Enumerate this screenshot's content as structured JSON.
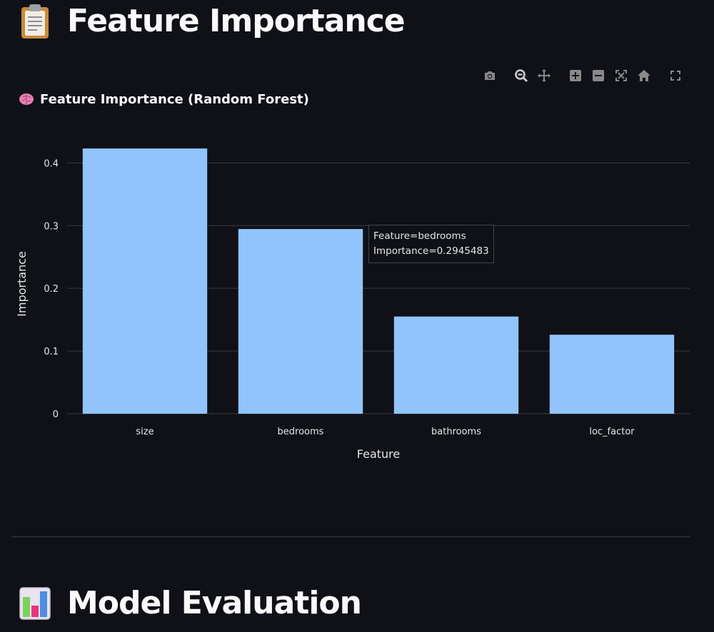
{
  "headings": {
    "feature_importance": "Feature Importance",
    "model_evaluation": "Model Evaluation"
  },
  "icons": {
    "feature_heading": "clipboard-icon",
    "model_heading": "bar-chart-icon",
    "chart_title": "brain-icon"
  },
  "modebar": [
    "camera-icon",
    "zoom-icon",
    "pan-icon",
    "zoom-in-icon",
    "zoom-out-icon",
    "autoscale-icon",
    "home-icon",
    "fullscreen-icon"
  ],
  "tooltip": {
    "line1": "Feature=bedrooms",
    "line2": "Importance=0.2945483"
  },
  "colors": {
    "background": "#0f1117",
    "bar": "#90c4fb",
    "grid": "#3a3b42"
  },
  "chart_data": {
    "type": "bar",
    "title": "Feature Importance (Random Forest)",
    "categories": [
      "size",
      "bedrooms",
      "bathrooms",
      "loc_factor"
    ],
    "values": [
      0.423,
      0.2945483,
      0.155,
      0.126
    ],
    "xlabel": "Feature",
    "ylabel": "Importance",
    "yticks": [
      "0",
      "0.1",
      "0.2",
      "0.3",
      "0.4"
    ],
    "ylim": [
      0,
      0.455
    ],
    "grid": true,
    "legend": "none"
  }
}
